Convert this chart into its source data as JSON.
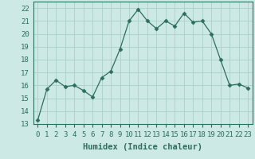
{
  "x": [
    0,
    1,
    2,
    3,
    4,
    5,
    6,
    7,
    8,
    9,
    10,
    11,
    12,
    13,
    14,
    15,
    16,
    17,
    18,
    19,
    20,
    21,
    22,
    23
  ],
  "y": [
    13.3,
    15.7,
    16.4,
    15.9,
    16.0,
    15.6,
    15.1,
    16.6,
    17.1,
    18.8,
    21.0,
    21.9,
    21.0,
    20.4,
    21.0,
    20.6,
    21.6,
    20.9,
    21.0,
    20.0,
    18.0,
    16.0,
    16.1,
    15.8
  ],
  "xlabel": "Humidex (Indice chaleur)",
  "ylim": [
    13,
    22.5
  ],
  "xlim": [
    -0.5,
    23.5
  ],
  "yticks": [
    13,
    14,
    15,
    16,
    17,
    18,
    19,
    20,
    21,
    22
  ],
  "xticks": [
    0,
    1,
    2,
    3,
    4,
    5,
    6,
    7,
    8,
    9,
    10,
    11,
    12,
    13,
    14,
    15,
    16,
    17,
    18,
    19,
    20,
    21,
    22,
    23
  ],
  "line_color": "#2d6e5e",
  "marker": "D",
  "marker_size": 2.5,
  "bg_color": "#cce9e5",
  "grid_color": "#aacfcb",
  "label_fontsize": 7.5,
  "tick_fontsize": 6.5
}
